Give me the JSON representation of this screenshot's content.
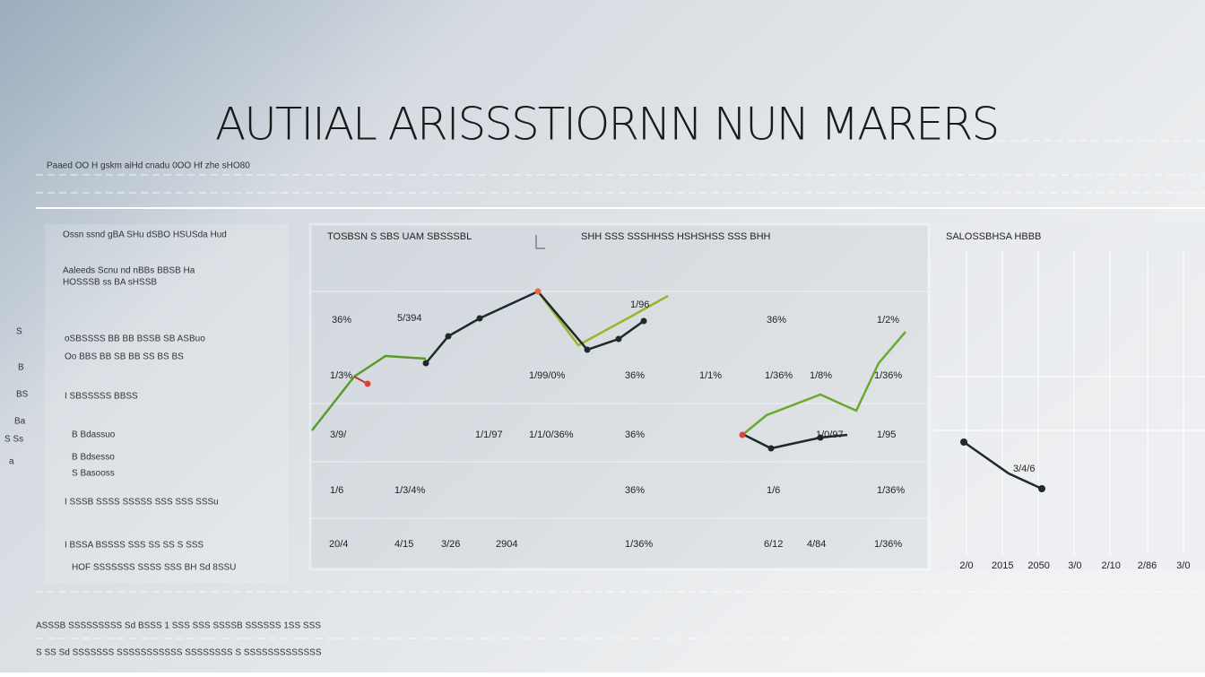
{
  "header": {
    "title": "AUTIIAL ARISSSTIORNN NUN MARERS",
    "subtitle": "Paaed OO H gskm aiHd cnadu 0OO Hf zhe sHO80"
  },
  "left_panel": {
    "lines": [
      "Ossn ssnd gBA SHu dSBO HSUSda Hud",
      "Aaleeds Scnu nd nBBs BBSB Ha",
      "HOSSSB ss BA sHSSB",
      "oSBSSSS BB BB BSSB SB ASBuo",
      "Oo BBS BB SB BB SS BS BS",
      "I SBSSSSS BBSS",
      "B Bdassuo",
      "B Bdsesso",
      "S Basooss",
      "I SSSB SSSS SSSSS SSS SSS SSSu",
      "I BSSA BSSSS SSS SS SS S SSS",
      "HOF SSSSSSS SSSS SSS BH Sd 8SSU"
    ]
  },
  "side_labels": [
    "S",
    "B",
    "BS",
    "Ba",
    "S Ss",
    "a"
  ],
  "middle_panel": {
    "title_left": "TOSBSN S SBS UAM SBSSSBL",
    "title_right": "SHH SSS SSSHHSS HSHSHSS SSS BHH",
    "labels": [
      "36%",
      "5/394",
      "1/96",
      "36%",
      "1/2%",
      "1/3%",
      "1/99/0%",
      "36%",
      "1/1%",
      "1/36%",
      "1/8%",
      "1/36%",
      "3/9/",
      "1/1/97",
      "1/1/0/36%",
      "36%",
      "1/0/97",
      "1/95",
      "1/6",
      "1/3/4%",
      "36%",
      "1/6",
      "1/36%",
      "20/4",
      "4/15",
      "3/26",
      "2904",
      "1/36%",
      "6/12",
      "4/84",
      "1/36%"
    ]
  },
  "right_panel": {
    "title": "SALOSSBHSA HBBB",
    "label": "3/4/6",
    "axis_labels": [
      "2/0",
      "2015",
      "2050",
      "3/0",
      "2/10",
      "2/86",
      "3/0"
    ]
  },
  "footer": {
    "lines": [
      "ASSSB SSSSSSSSS Sd BSSS 1 SSS SSS SSSSB SSSSSS 1SS SSS",
      "S SS Sd SSSSSSS SSSSSSSSSSS SSSSSSSS S SSSSSSSSSSSSS"
    ]
  }
}
